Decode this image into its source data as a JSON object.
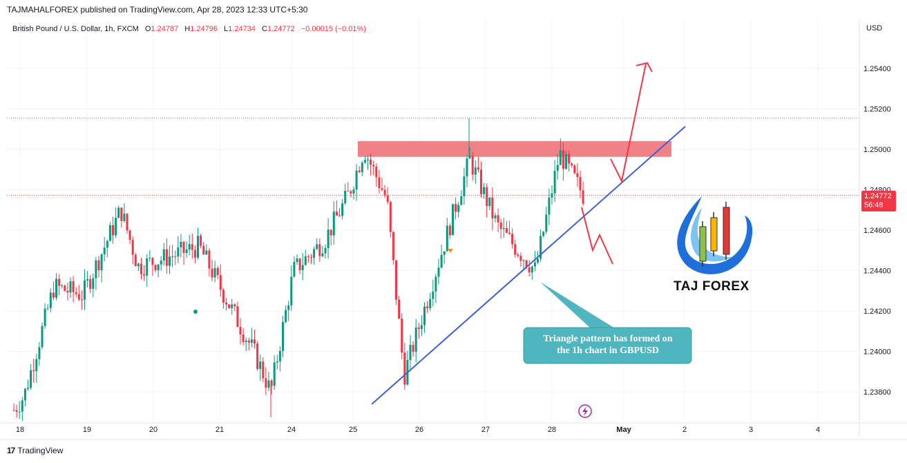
{
  "publisher_line": "TAJMAHALFOREX published on TradingView.com, Apr 28, 2023 12:33 UTC+5:30",
  "footer": {
    "brand": "TradingView"
  },
  "legend": {
    "symbol": "British Pound / U.S. Dollar, 1h, FXCM",
    "o_label": "O",
    "o_value": "1.24787",
    "h_label": "H",
    "h_value": "1.24796",
    "l_label": "L",
    "l_value": "1.24734",
    "c_label": "C",
    "c_value": "1.24772",
    "change": "−0.00015 (−0.01%)"
  },
  "price_tag": {
    "price": "1.24772",
    "countdown": "56:48"
  },
  "annotation": {
    "line1": "Triangle pattern has formed on",
    "line2": "the 1h chart in GBPUSD"
  },
  "brand_logo": {
    "name": "TAJ FOREX"
  },
  "colors": {
    "up": "#089981",
    "down": "#f23645",
    "trendline": "#3f5fd6",
    "zone": "#f0737a",
    "arrow": "#f23645",
    "callout": "#4fb5bf"
  },
  "chart_data": {
    "type": "candlestick",
    "currency_label": "USD",
    "y_ticks": [
      "1.25400",
      "1.25200",
      "1.25000",
      "1.24800",
      "1.24600",
      "1.24400",
      "1.24200",
      "1.24000",
      "1.23800"
    ],
    "x_ticks": [
      "18",
      "19",
      "20",
      "21",
      "24",
      "25",
      "26",
      "27",
      "28",
      "May",
      "2",
      "3",
      "4"
    ],
    "ylim": [
      1.2366,
      1.2576
    ],
    "grid": true,
    "last_close": 1.24772,
    "resistance_zone": [
      1.2498,
      1.2503
    ],
    "trendline": {
      "from": [
        "Apr 25",
        1.2375
      ],
      "to": [
        "May 1",
        1.2512
      ]
    },
    "key_closes": [
      {
        "x": "18",
        "y": 1.2375
      },
      {
        "x": "18",
        "y": 1.2435
      },
      {
        "x": "19",
        "y": 1.2425
      },
      {
        "x": "19",
        "y": 1.247
      },
      {
        "x": "20",
        "y": 1.2445
      },
      {
        "x": "20",
        "y": 1.2425
      },
      {
        "x": "21",
        "y": 1.246
      },
      {
        "x": "21",
        "y": 1.239
      },
      {
        "x": "24",
        "y": 1.244
      },
      {
        "x": "24",
        "y": 1.2485
      },
      {
        "x": "25",
        "y": 1.25
      },
      {
        "x": "25",
        "y": 1.2465
      },
      {
        "x": "26",
        "y": 1.239
      },
      {
        "x": "26",
        "y": 1.242
      },
      {
        "x": "27",
        "y": 1.2495
      },
      {
        "x": "27",
        "y": 1.2462
      },
      {
        "x": "28",
        "y": 1.2442
      },
      {
        "x": "28",
        "y": 1.2499
      },
      {
        "x": "28",
        "y": 1.2477
      }
    ]
  }
}
